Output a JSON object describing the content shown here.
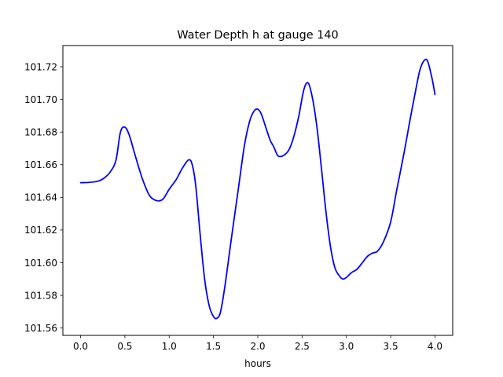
{
  "chart_data": {
    "type": "line",
    "title": "Water Depth h at gauge 140",
    "xlabel": "hours",
    "ylabel": "",
    "xlim": [
      -0.2,
      4.2
    ],
    "ylim": [
      101.5555,
      101.733
    ],
    "x_ticks": [
      0.0,
      0.5,
      1.0,
      1.5,
      2.0,
      2.5,
      3.0,
      3.5,
      4.0
    ],
    "x_tick_labels": [
      "0.0",
      "0.5",
      "1.0",
      "1.5",
      "2.0",
      "2.5",
      "3.0",
      "3.5",
      "4.0"
    ],
    "y_ticks": [
      101.56,
      101.58,
      101.6,
      101.62,
      101.64,
      101.66,
      101.68,
      101.7,
      101.72
    ],
    "y_tick_labels": [
      "101.56",
      "101.58",
      "101.60",
      "101.62",
      "101.64",
      "101.66",
      "101.68",
      "101.70",
      "101.72"
    ],
    "grid": false,
    "legend": "none",
    "series": [
      {
        "color": "#0000ff",
        "x": [
          0.0,
          0.1,
          0.2,
          0.27,
          0.34,
          0.4,
          0.45,
          0.5,
          0.55,
          0.62,
          0.7,
          0.78,
          0.86,
          0.93,
          1.0,
          1.08,
          1.15,
          1.22,
          1.26,
          1.3,
          1.35,
          1.4,
          1.45,
          1.5,
          1.54,
          1.58,
          1.63,
          1.7,
          1.78,
          1.85,
          1.91,
          1.96,
          2.0,
          2.04,
          2.09,
          2.14,
          2.18,
          2.22,
          2.25,
          2.3,
          2.35,
          2.4,
          2.46,
          2.52,
          2.57,
          2.62,
          2.67,
          2.72,
          2.77,
          2.82,
          2.87,
          2.92,
          2.96,
          3.0,
          3.06,
          3.12,
          3.18,
          3.24,
          3.3,
          3.35,
          3.42,
          3.5,
          3.57,
          3.65,
          3.72,
          3.78,
          3.83,
          3.88,
          3.92,
          3.97,
          4.0
        ],
        "y": [
          101.649,
          101.6492,
          101.65,
          101.652,
          101.656,
          101.663,
          101.68,
          101.683,
          101.678,
          101.665,
          101.651,
          101.641,
          101.638,
          101.639,
          101.645,
          101.651,
          101.658,
          101.663,
          101.66,
          101.647,
          101.617,
          101.59,
          101.574,
          101.567,
          101.566,
          101.57,
          101.586,
          101.614,
          101.645,
          101.672,
          101.687,
          101.693,
          101.694,
          101.691,
          101.683,
          101.675,
          101.671,
          101.666,
          101.665,
          101.666,
          101.669,
          101.676,
          101.689,
          101.706,
          101.71,
          101.7,
          101.682,
          101.657,
          101.631,
          101.61,
          101.597,
          101.592,
          101.59,
          101.591,
          101.594,
          101.596,
          101.6,
          101.604,
          101.606,
          101.607,
          101.613,
          101.625,
          101.645,
          101.667,
          101.688,
          101.705,
          101.718,
          101.724,
          101.723,
          101.712,
          101.703
        ]
      }
    ]
  }
}
